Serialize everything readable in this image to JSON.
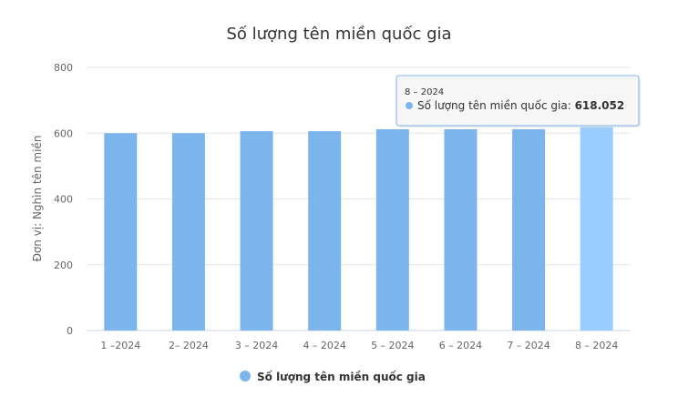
{
  "chart_data": {
    "type": "bar",
    "title": "Số lượng tên miền quốc gia",
    "ylabel": "Đơn vị: Nghìn tên miền",
    "xlabel": "",
    "categories": [
      "1 –2024",
      "2– 2024",
      "3 – 2024",
      "4 – 2024",
      "5 – 2024",
      "6 – 2024",
      "7 – 2024",
      "8 – 2024"
    ],
    "series": [
      {
        "name": "Số lượng tên miền quốc gia",
        "values": [
          600,
          600,
          606,
          606,
          612,
          612,
          612,
          618.052
        ]
      }
    ],
    "ylim": [
      0,
      800
    ],
    "yticks": [
      "0",
      "200",
      "400",
      "600",
      "800"
    ],
    "grid": true,
    "legend": "bottom-center",
    "colors": {
      "bar": "#7cb5ec",
      "highlight": "#99ccff",
      "tooltip_border": "#7cb5ec"
    },
    "highlighted_index": 7,
    "tooltip": {
      "header": "8 – 2024",
      "label": "Số lượng tên miền quốc gia: ",
      "value": "618.052"
    }
  }
}
